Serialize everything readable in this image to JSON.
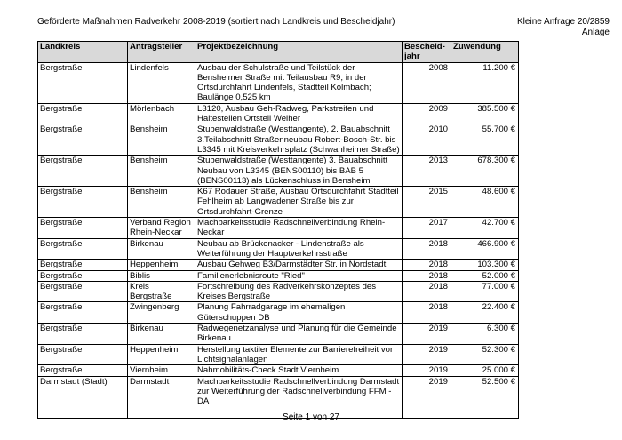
{
  "header": {
    "title": "Geförderte Maßnahmen Radverkehr 2008-2019 (sortiert nach Landkreis und Bescheidjahr)",
    "ref_line1": "Kleine Anfrage 20/2859",
    "ref_line2": "Anlage"
  },
  "table": {
    "columns": [
      "Landkreis",
      "Antragsteller",
      "Projektbezeichnung",
      "Bescheid-jahr",
      "Zuwendung"
    ],
    "rows": [
      [
        "Bergstraße",
        "Lindenfels",
        "Ausbau der Schulstraße und Teilstück der Bensheimer Straße mit Teilausbau R9, in der Ortsdurchfahrt Lindenfels, Stadtteil Kolmbach; Baulänge 0,525 km",
        "2008",
        "11.200 €"
      ],
      [
        "Bergstraße",
        "Mörlenbach",
        "L3120, Ausbau Geh-Radweg, Parkstreifen und Haltestellen Ortsteil Weiher",
        "2009",
        "385.500 €"
      ],
      [
        "Bergstraße",
        "Bensheim",
        "Stubenwaldstraße (Westtangente), 2. Bauabschnitt 3.Teilabschnitt Straßenneubau Robert-Bosch-Str. bis L3345 mit Kreisverkehrsplatz (Schwanheimer Straße)",
        "2010",
        "55.700 €"
      ],
      [
        "Bergstraße",
        "Bensheim",
        "Stubenwaldstraße (Westtangente) 3. Bauabschnitt Neubau von L3345 (BENS00110) bis BAB 5 (BENS00113) als Lückenschluss in Bensheim",
        "2013",
        "678.300 €"
      ],
      [
        "Bergstraße",
        "Bensheim",
        "K67 Rodauer Straße, Ausbau Ortsdurchfahrt Stadtteil Fehlheim ab Langwadener Straße bis zur Ortsdurchfahrt-Grenze",
        "2015",
        "48.600 €"
      ],
      [
        "Bergstraße",
        "Verband Region Rhein-Neckar",
        "Machbarkeitsstudie Radschnellverbindung Rhein-Neckar",
        "2017",
        "42.700 €"
      ],
      [
        "Bergstraße",
        "Birkenau",
        "Neubau ab Brückenacker - Lindenstraße als Weiterführung der Hauptverkehrsstraße",
        "2018",
        "466.900 €"
      ],
      [
        "Bergstraße",
        "Heppenheim",
        "Ausbau Gehweg B3/Darmstädter Str. in Nordstadt",
        "2018",
        "103.300 €"
      ],
      [
        "Bergstraße",
        "Biblis",
        "Familienerlebnisroute \"Ried\"",
        "2018",
        "52.000 €"
      ],
      [
        "Bergstraße",
        "Kreis Bergstraße",
        "Fortschreibung des Radverkehrskonzeptes des Kreises Bergstraße",
        "2018",
        "77.000 €"
      ],
      [
        "Bergstraße",
        "Zwingenberg",
        "Planung Fahrradgarage im ehemaligen Güterschuppen DB",
        "2018",
        "22.400 €"
      ],
      [
        "Bergstraße",
        "Birkenau",
        "Radwegenetzanalyse und Planung für die Gemeinde Birkenau",
        "2019",
        "6.300 €"
      ],
      [
        "Bergstraße",
        "Heppenheim",
        "Herstellung taktiler Elemente zur Barrierefreiheit vor Lichtsignalanlagen",
        "2019",
        "52.300 €"
      ],
      [
        "Bergstraße",
        "Viernheim",
        "Nahmobilitäts-Check Stadt Viernheim",
        "2019",
        "25.000 €"
      ],
      [
        "Darmstadt (Stadt)",
        "Darmstadt",
        "Machbarkeitsstudie Radschnellverbindung Darmstadt zur Weiterführung der Radschnellverbindung FFM - DA",
        "2019",
        "52.500 €"
      ]
    ]
  },
  "footer": {
    "page": "Seite 1 von 27"
  }
}
